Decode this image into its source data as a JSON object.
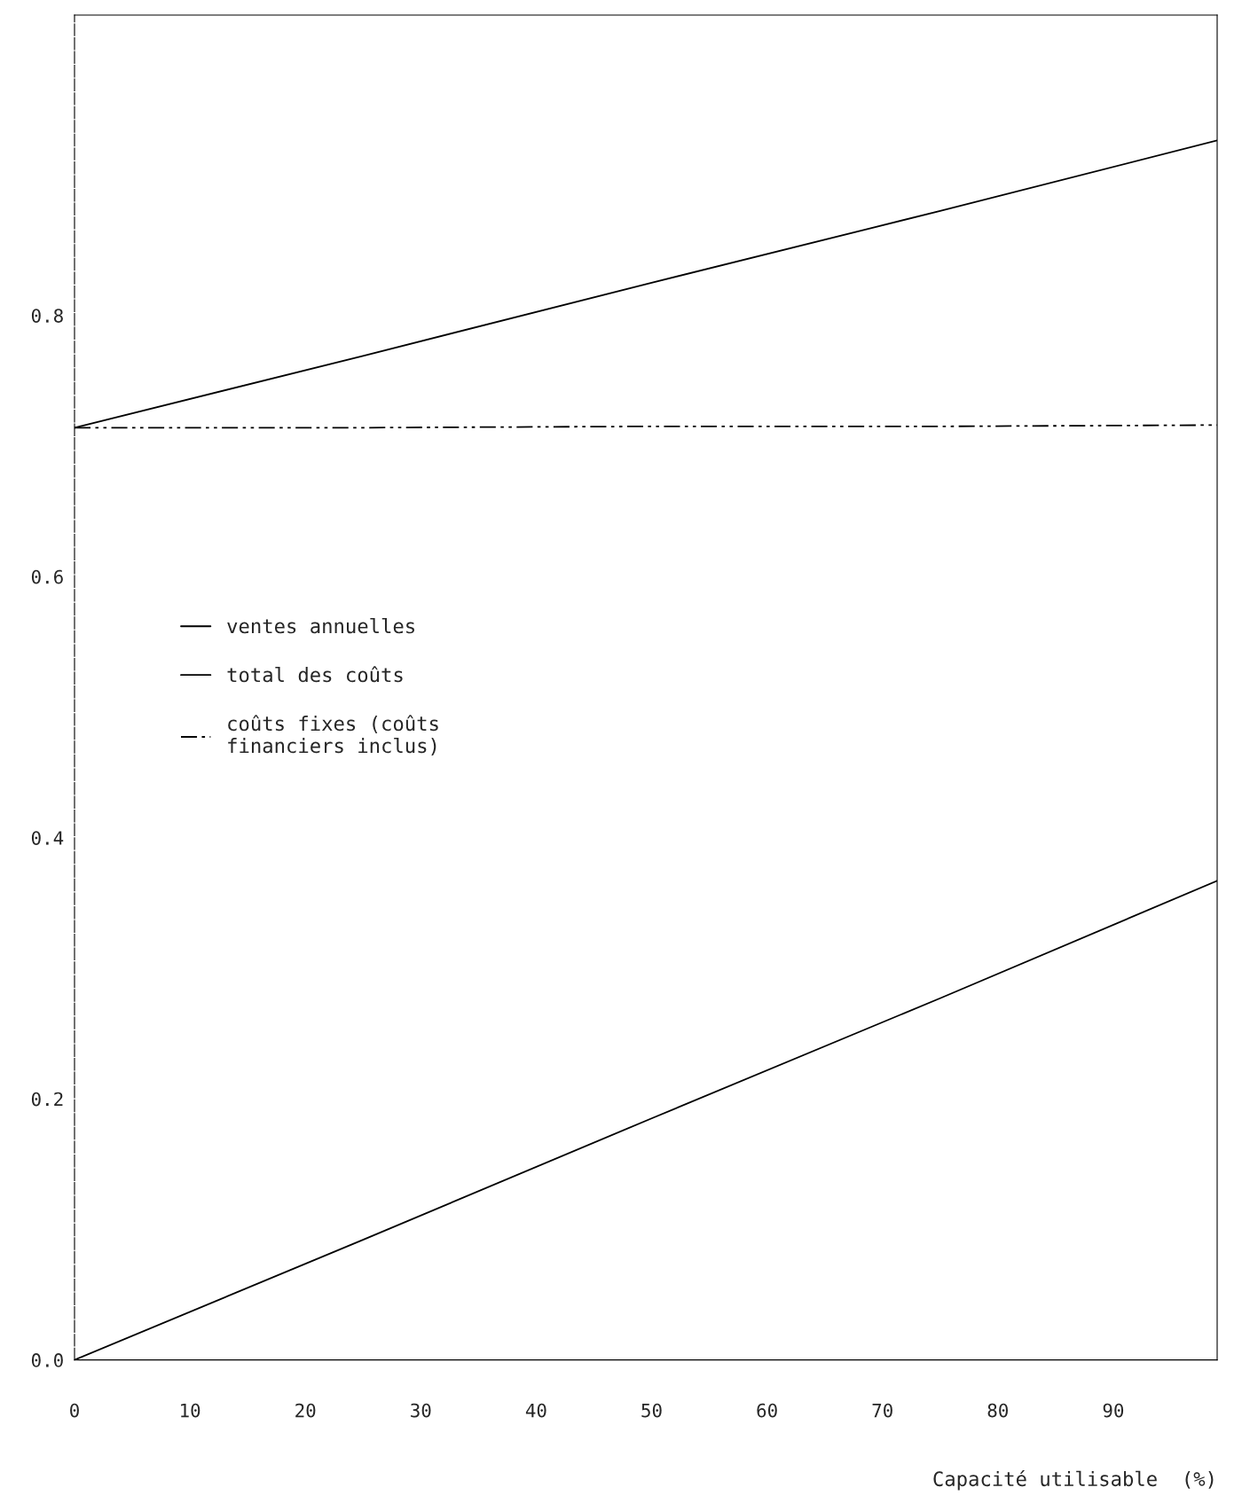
{
  "chart_data": {
    "type": "line",
    "xlabel": "Capacité utilisable  (%)",
    "xlim": [
      0,
      99
    ],
    "xticks": [
      0,
      10,
      20,
      30,
      40,
      50,
      60,
      70,
      80,
      90
    ],
    "ylim": [
      0,
      1.03
    ],
    "yticks": [
      {
        "value": 0,
        "label": "0.0"
      },
      {
        "value": 0.2,
        "label": "0.2"
      },
      {
        "value": 0.4,
        "label": "0.4"
      },
      {
        "value": 0.6,
        "label": "0.6"
      },
      {
        "value": 0.8,
        "label": "0.8"
      }
    ],
    "x": [
      0,
      25,
      50,
      75,
      99
    ],
    "series": [
      {
        "name": "ventes annuelles",
        "color": "#000000",
        "line_style": "solid",
        "values": [
          0,
          0.092,
          0.185,
          0.277,
          0.367
        ]
      },
      {
        "name": "total des coûts",
        "color": "#000000",
        "line_style": "solid",
        "values": [
          0.714,
          0.769,
          0.825,
          0.88,
          0.934
        ]
      },
      {
        "name": "coûts fixes (coûts\nfinanciers inclus)",
        "color": "#000000",
        "line_style": "dashed",
        "values": [
          0.714,
          0.714,
          0.715,
          0.715,
          0.716
        ]
      }
    ],
    "legend": "left",
    "grid": false,
    "marker": "none"
  }
}
